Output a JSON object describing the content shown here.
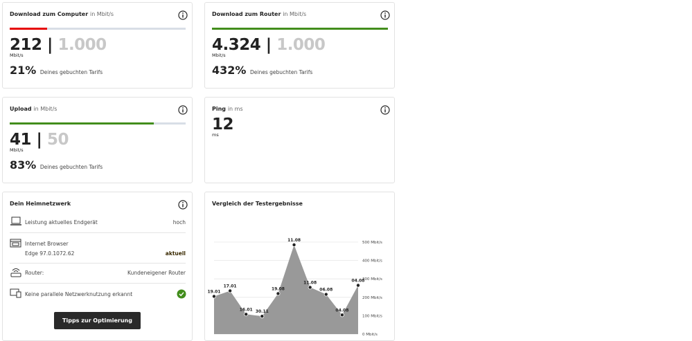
{
  "download_computer": {
    "title": "Download zum Computer",
    "unit_note": "in Mbit/s",
    "value": 212,
    "max": 1000,
    "max_label": "1.000",
    "unit": "Mbit/s",
    "percent": 21,
    "percent_label": "21%",
    "tariff_text": "Deines gebuchten Tarifs",
    "bar_color": "#e60000"
  },
  "download_router": {
    "title": "Download zum Router",
    "unit_note": "in Mbit/s",
    "value": 4324,
    "value_label": "4.324",
    "max": 1000,
    "max_label": "1.000",
    "unit": "Mbit/s",
    "percent": 432,
    "percent_label": "432%",
    "tariff_text": "Deines gebuchten Tarifs",
    "bar_color": "#428d1c"
  },
  "upload": {
    "title": "Upload",
    "unit_note": "in Mbit/s",
    "value": 41,
    "max": 50,
    "unit": "Mbit/s",
    "percent": 83,
    "percent_label": "83%",
    "tariff_text": "Deines gebuchten Tarifs",
    "bar_color": "#428d1c"
  },
  "ping": {
    "title": "Ping",
    "unit_note": "in ms",
    "value": 12,
    "unit": "ms"
  },
  "home_network": {
    "title": "Dein Heimnetzwerk",
    "rows": [
      {
        "label": "Leistung aktuelles Endgerät",
        "value": "hoch"
      },
      {
        "label": "Internet Browser",
        "detail": "Edge 97.0.1072.62",
        "value": "aktuell"
      },
      {
        "label": "Router:",
        "value": "Kundeneigener Router"
      },
      {
        "label": "Keine parallele Netzwerknutzung erkannt"
      }
    ],
    "button": "Tipps zur Optimierung"
  },
  "comparison": {
    "type": "area",
    "title": "Vergleich der Testergebnisse",
    "categories": [
      "19.01",
      "17.01",
      "16.01",
      "30.11",
      "19.08",
      "11.08",
      "11.08",
      "06.08",
      "04.08",
      "04.08"
    ],
    "values": [
      205,
      235,
      108,
      97,
      220,
      485,
      254,
      216,
      104,
      265
    ],
    "color": "#999999",
    "ylim": [
      0,
      500
    ],
    "yticks": [
      {
        "value": 0,
        "label": "0 Mbit/s"
      },
      {
        "value": 100,
        "label": "100 Mbit/s"
      },
      {
        "value": 200,
        "label": "200 Mbit/s"
      },
      {
        "value": 300,
        "label": "300 Mbit/s"
      },
      {
        "value": 400,
        "label": "400 Mbit/s"
      },
      {
        "value": 500,
        "label": "500 Mbit/s"
      }
    ],
    "grid": true
  }
}
